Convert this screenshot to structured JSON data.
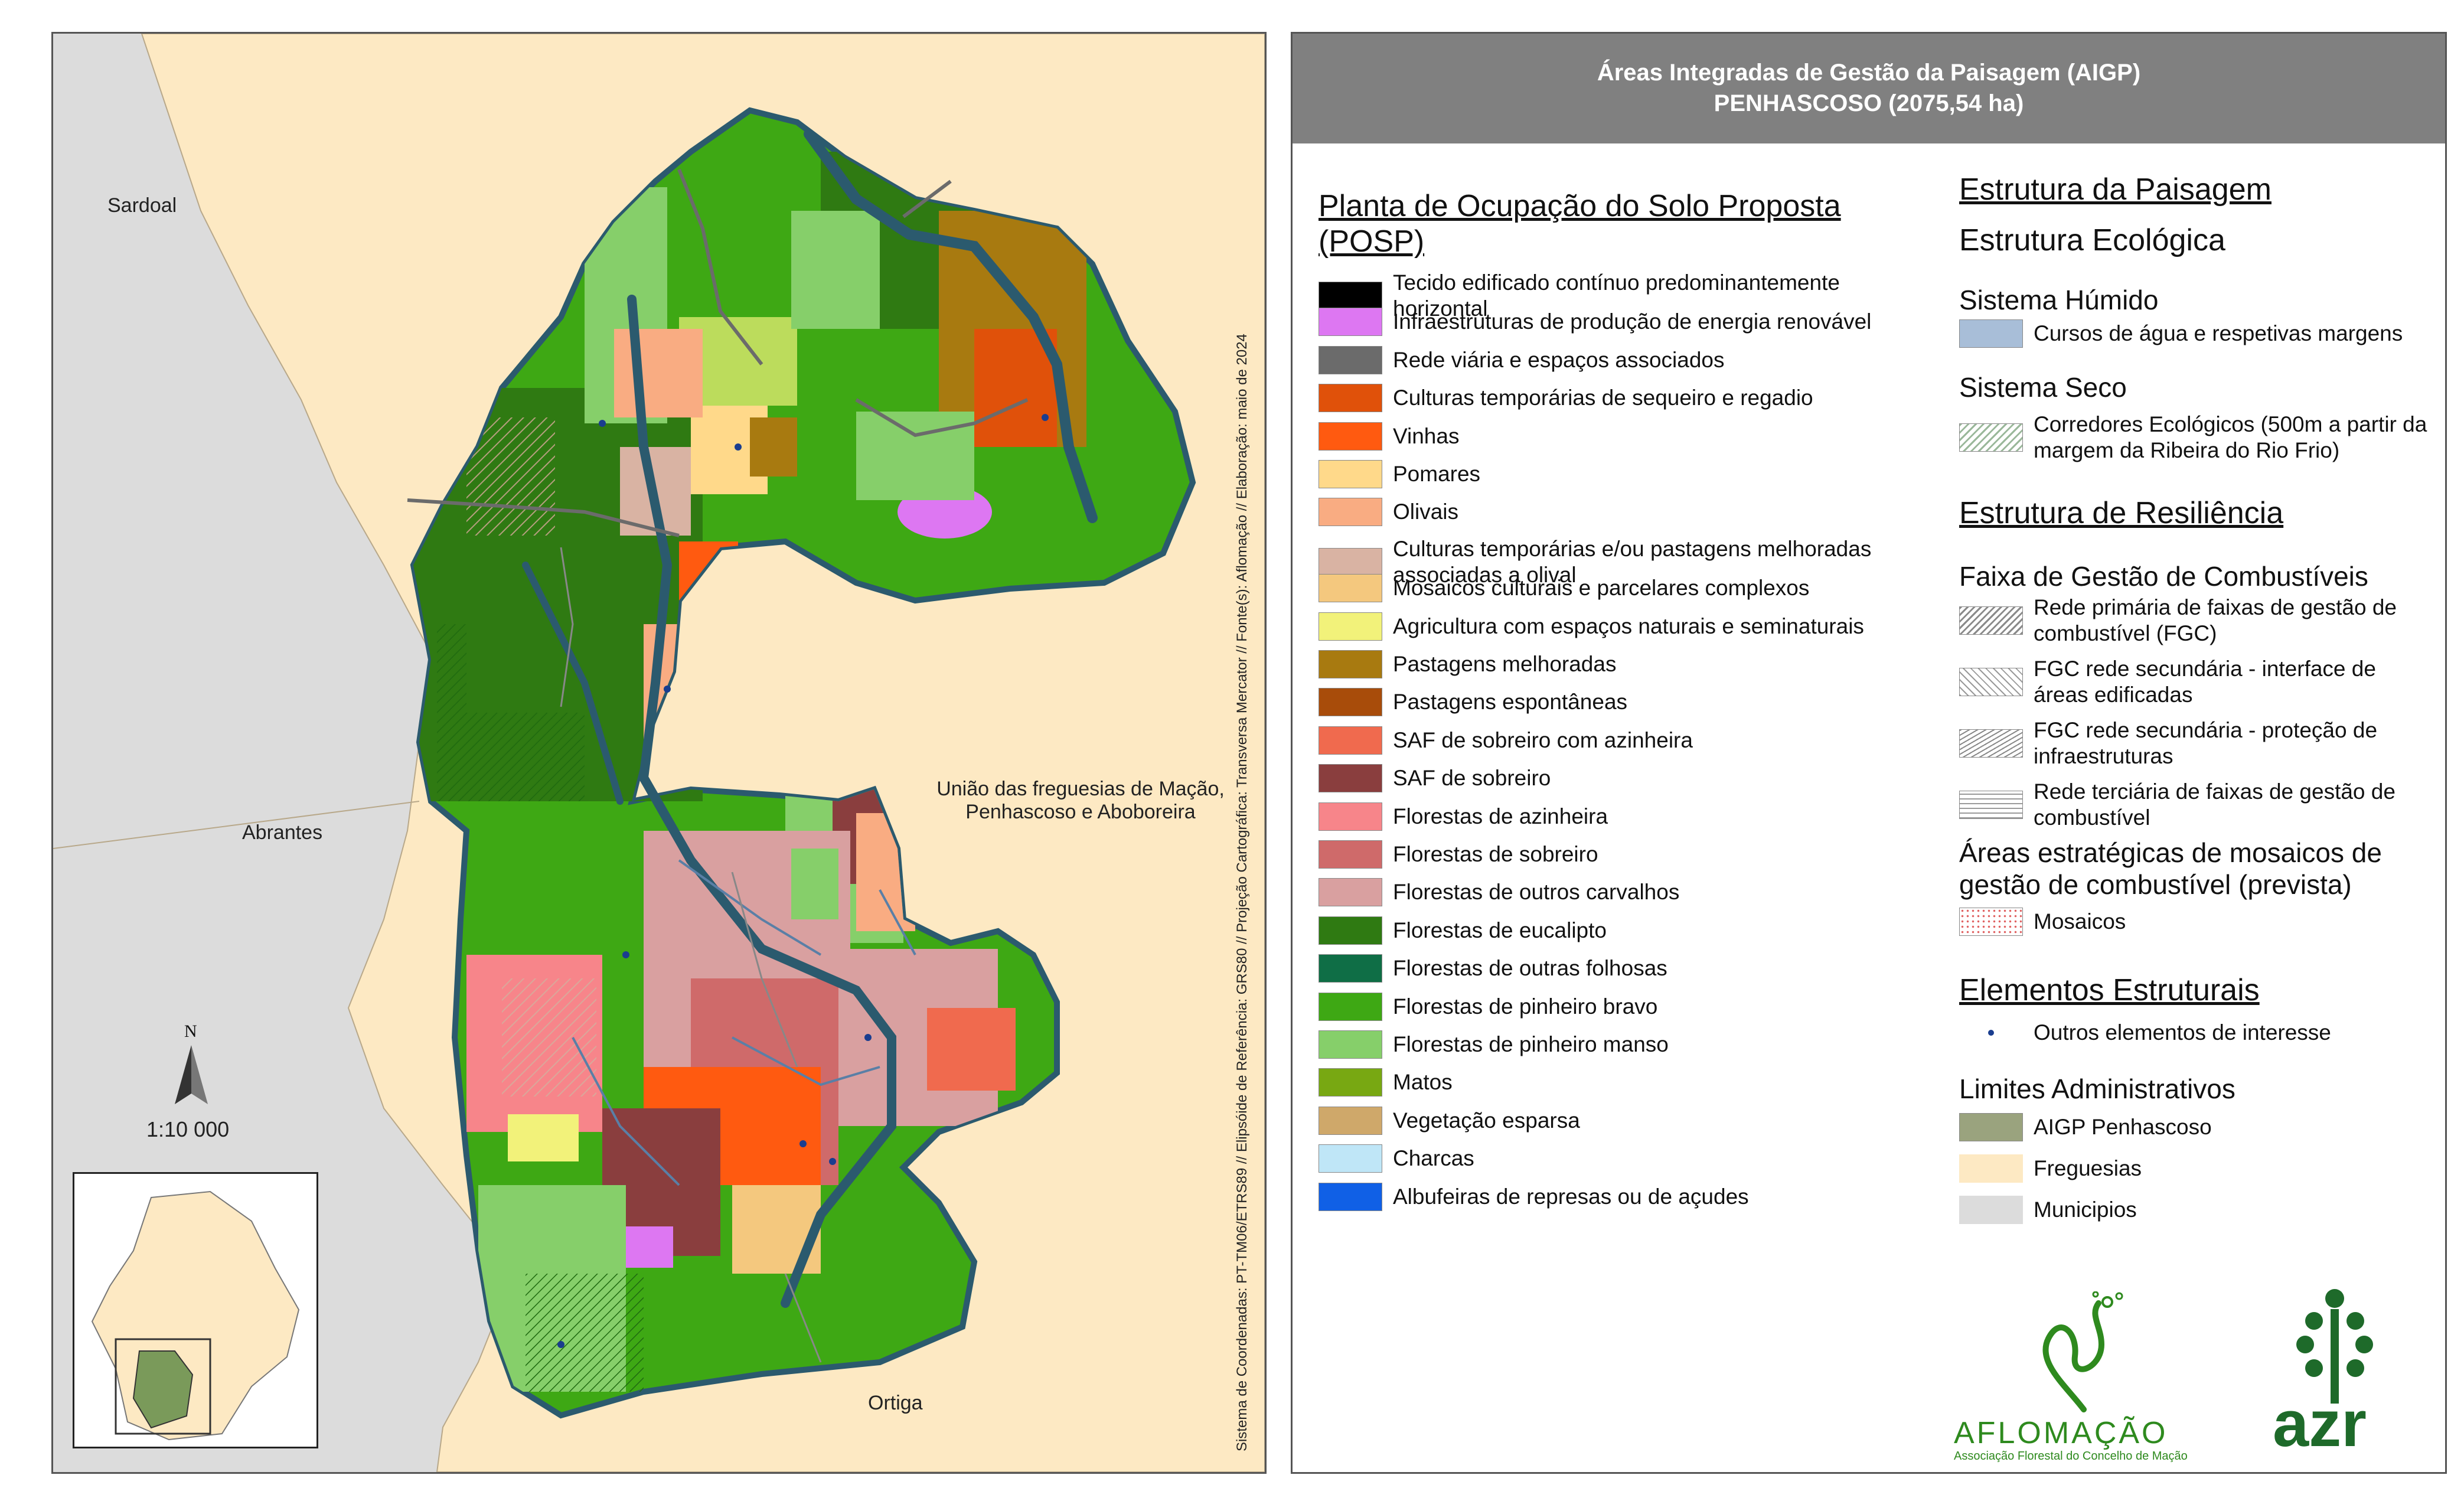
{
  "map": {
    "places": {
      "sardoal": "Sardoal",
      "abrantes": "Abrantes",
      "uniao": "União das freguesias de Mação, Penhascoso e Aboboreira",
      "ortiga": "Ortiga"
    },
    "north": "N",
    "scale": "1:10 000",
    "credits": "Sistema de Coordenadas: PT-TM06/ETRS89 // Elipsóide de Referência: GRS80 // Projeção Cartográfica: Transversa Mercator // Fonte(s): Aflomação // Elaboração: maio de 2024"
  },
  "legend": {
    "title_line1": "Áreas Integradas de Gestão da Paisagem (AIGP)",
    "title_line2": "PENHASCOSO (2075,54 ha)",
    "posp_title": "Planta de Ocupação do Solo Proposta (POSP)",
    "posp_items": [
      {
        "label": "Tecido edificado contínuo predominantemente horizontal",
        "color": "#000000"
      },
      {
        "label": "Infraestruturas de produção de energia renovável",
        "color": "#dd77f2"
      },
      {
        "label": "Rede viária e espaços associados",
        "color": "#6b6b6b"
      },
      {
        "label": "Culturas temporárias de sequeiro e regadio",
        "color": "#e0510a"
      },
      {
        "label": "Vinhas",
        "color": "#ff5a10"
      },
      {
        "label": "Pomares",
        "color": "#ffd98a"
      },
      {
        "label": "Olivais",
        "color": "#f9ac82"
      },
      {
        "label": "Culturas temporárias e/ou pastagens melhoradas associadas a olival",
        "color": "#d9b3a3"
      },
      {
        "label": "Mosaicos culturais e parcelares complexos",
        "color": "#f4c87e"
      },
      {
        "label": "Agricultura com espaços naturais e seminaturais",
        "color": "#f2f27a"
      },
      {
        "label": "Pastagens melhoradas",
        "color": "#a87a10"
      },
      {
        "label": "Pastagens espontâneas",
        "color": "#a84c0a"
      },
      {
        "label": "SAF de sobreiro com azinheira",
        "color": "#f06a4e"
      },
      {
        "label": "SAF de sobreiro",
        "color": "#8a3e3e"
      },
      {
        "label": "Florestas de azinheira",
        "color": "#f7858a"
      },
      {
        "label": "Florestas de sobreiro",
        "color": "#cf6a6a"
      },
      {
        "label": "Florestas de outros carvalhos",
        "color": "#d9a0a0"
      },
      {
        "label": "Florestas de eucalipto",
        "color": "#2f7a12"
      },
      {
        "label": "Florestas de outras folhosas",
        "color": "#0f6e46"
      },
      {
        "label": "Florestas de pinheiro bravo",
        "color": "#3ea814"
      },
      {
        "label": "Florestas de pinheiro manso",
        "color": "#86cf6a"
      },
      {
        "label": "Matos",
        "color": "#78a812"
      },
      {
        "label": "Vegetação esparsa",
        "color": "#cfa86a"
      },
      {
        "label": "Charcas",
        "color": "#bfe6f7"
      },
      {
        "label": "Albufeiras de represas ou de açudes",
        "color": "#1060e6"
      }
    ],
    "estrutura_paisagem": "Estrutura da Paisagem",
    "estrutura_ecologica": "Estrutura Ecológica",
    "sistema_humido": "Sistema Húmido",
    "cursos_agua": "Cursos de água e respetivas margens",
    "cursos_agua_color": "#a8bed8",
    "sistema_seco": "Sistema Seco",
    "corredores": "Corredores Ecológicos (500m a partir da margem da Ribeira do Rio Frio)",
    "estrutura_resiliencia": "Estrutura de Resiliência",
    "faixa_gestao": "Faixa de Gestão de Combustíveis",
    "fgc_items": [
      "Rede primária de faixas de gestão de combustível (FGC)",
      "FGC rede secundária - interface de áreas edificadas",
      "FGC rede secundária - proteção de infraestruturas",
      "Rede terciária de faixas de gestão de combustível"
    ],
    "areas_estrategicas": "Áreas estratégicas de mosaicos de gestão de combustível (prevista)",
    "mosaicos": "Mosaicos",
    "elementos_estruturais": "Elementos Estruturais",
    "outros_elementos": "Outros elementos de interesse",
    "limites": "Limites Administrativos",
    "limites_items": [
      {
        "label": "AIGP Penhascoso",
        "color": "#9aa37e"
      },
      {
        "label": "Freguesias",
        "color": "#fde9c3"
      },
      {
        "label": "Municipios",
        "color": "#dcdcdc"
      }
    ]
  },
  "logos": {
    "aflomacao_name": "AFLOMAÇÃO",
    "aflomacao_sub": "Associação Florestal do Concelho de Mação",
    "azr": "azr"
  }
}
